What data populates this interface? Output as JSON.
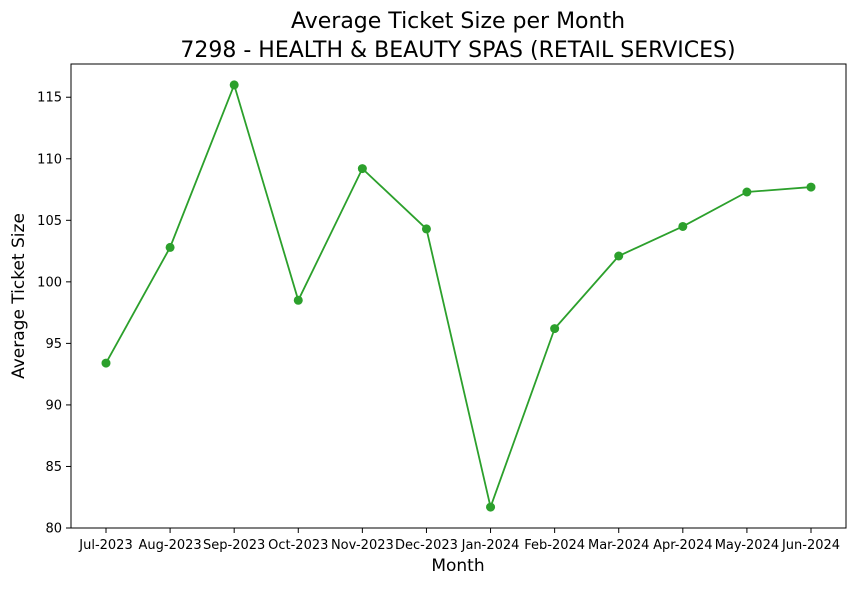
{
  "chart_data": {
    "type": "line",
    "title": "Average Ticket Size per Month",
    "subtitle": "7298 - HEALTH & BEAUTY SPAS (RETAIL SERVICES)",
    "xlabel": "Month",
    "ylabel": "Average Ticket Size",
    "categories": [
      "Jul-2023",
      "Aug-2023",
      "Sep-2023",
      "Oct-2023",
      "Nov-2023",
      "Dec-2023",
      "Jan-2024",
      "Feb-2024",
      "Mar-2024",
      "Apr-2024",
      "May-2024",
      "Jun-2024"
    ],
    "series": [
      {
        "name": "Average Ticket Size",
        "color": "#2ca02c",
        "values": [
          93.4,
          102.8,
          116.0,
          98.5,
          109.2,
          104.3,
          81.7,
          96.2,
          102.1,
          104.5,
          107.3,
          107.7
        ]
      }
    ],
    "yticks": [
      "80",
      "85",
      "90",
      "95",
      "100",
      "105",
      "110",
      "115"
    ],
    "ylim": [
      80,
      117.7
    ],
    "grid": false,
    "legend": "none"
  }
}
